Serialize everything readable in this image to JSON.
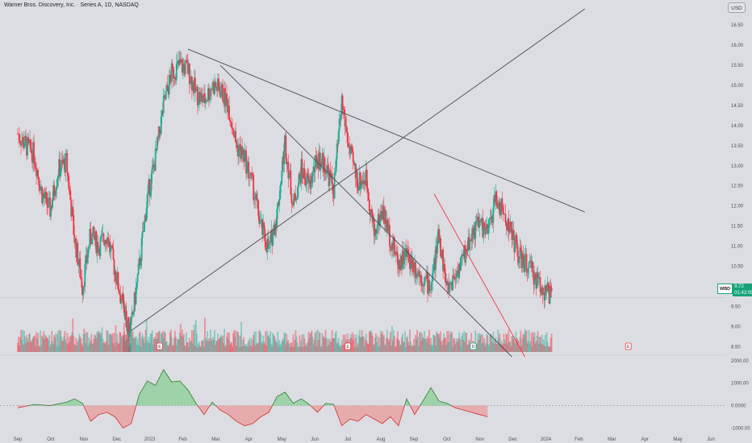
{
  "header": {
    "title": "Warner Bros. Discovery, Inc. · Series A, 1D, NASDAQ",
    "currency_button": "USD"
  },
  "price_tag": {
    "symbol": "WBD",
    "price": "9.72",
    "countdown": "01:42:09"
  },
  "colors": {
    "background": "#dcdde2",
    "up": "#22ab94",
    "down": "#f23645",
    "trendline": "#4a4d55",
    "red_trendline": "#f23645",
    "osc_positive_fill": "#8fcf9a",
    "osc_negative_fill": "#e8a0a0"
  },
  "chart_data": {
    "type": "candlestick",
    "price_axis": {
      "ticks": [
        16.5,
        16.0,
        15.5,
        15.0,
        14.5,
        14.0,
        13.5,
        13.0,
        12.5,
        12.0,
        11.5,
        11.0,
        10.5,
        10.0,
        9.5,
        9.0,
        8.5
      ],
      "tick_labels": [
        "16.50",
        "16.00",
        "15.50",
        "15.00",
        "14.50",
        "14.00",
        "13.50",
        "13.00",
        "12.50",
        "12.00",
        "11.50",
        "11.00",
        "10.50",
        "10.00",
        "9.50",
        "9.00",
        "8.50"
      ],
      "range": [
        8.25,
        17.0
      ]
    },
    "time_axis": {
      "labels": [
        "Sep",
        "Oct",
        "Nov",
        "Dec",
        "2023",
        "Feb",
        "Mar",
        "Apr",
        "May",
        "Jun",
        "Jul",
        "Aug",
        "Sep",
        "Oct",
        "Nov",
        "Dec",
        "2024",
        "Feb",
        "Mar",
        "Apr",
        "May",
        "Jun"
      ],
      "range": [
        0,
        21
      ]
    },
    "price_path": [
      [
        0.0,
        13.8
      ],
      [
        0.5,
        13.5
      ],
      [
        1.0,
        13.3
      ],
      [
        1.5,
        12.3
      ],
      [
        2.0,
        11.9
      ],
      [
        2.5,
        12.9
      ],
      [
        3.0,
        13.1
      ],
      [
        3.5,
        11.2
      ],
      [
        4.0,
        10.0
      ],
      [
        4.5,
        11.3
      ],
      [
        5.0,
        11.0
      ],
      [
        5.5,
        11.3
      ],
      [
        6.0,
        10.4
      ],
      [
        6.5,
        9.5
      ],
      [
        6.8,
        9.0
      ],
      [
        7.0,
        9.0
      ],
      [
        7.5,
        10.5
      ],
      [
        8.0,
        12.2
      ],
      [
        8.5,
        13.2
      ],
      [
        9.0,
        14.5
      ],
      [
        9.5,
        15.3
      ],
      [
        10.0,
        15.5
      ],
      [
        10.5,
        15.4
      ],
      [
        11.0,
        14.8
      ],
      [
        11.5,
        14.6
      ],
      [
        12.0,
        15.0
      ],
      [
        12.5,
        14.9
      ],
      [
        13.0,
        14.5
      ],
      [
        13.5,
        13.5
      ],
      [
        14.0,
        13.2
      ],
      [
        14.5,
        12.5
      ],
      [
        15.0,
        11.5
      ],
      [
        15.5,
        10.9
      ],
      [
        16.0,
        11.8
      ],
      [
        16.5,
        13.6
      ],
      [
        17.0,
        12.0
      ],
      [
        17.5,
        12.9
      ],
      [
        18.0,
        12.5
      ],
      [
        18.5,
        13.2
      ],
      [
        19.0,
        13.0
      ],
      [
        19.5,
        12.4
      ],
      [
        20.0,
        14.6
      ],
      [
        20.5,
        13.3
      ],
      [
        21.0,
        12.6
      ],
      [
        21.5,
        12.7
      ],
      [
        22.0,
        11.3
      ],
      [
        22.5,
        11.9
      ],
      [
        23.0,
        11.2
      ],
      [
        23.5,
        10.6
      ],
      [
        24.0,
        10.8
      ],
      [
        24.5,
        10.5
      ],
      [
        25.0,
        10.2
      ],
      [
        25.5,
        10.0
      ],
      [
        26.0,
        11.3
      ],
      [
        26.5,
        9.9
      ],
      [
        27.0,
        10.3
      ],
      [
        27.5,
        10.7
      ],
      [
        28.0,
        11.3
      ],
      [
        28.5,
        11.6
      ],
      [
        29.0,
        11.3
      ],
      [
        29.5,
        12.2
      ],
      [
        30.0,
        11.8
      ],
      [
        30.5,
        11.3
      ],
      [
        31.0,
        10.7
      ],
      [
        31.5,
        10.5
      ],
      [
        32.0,
        10.2
      ],
      [
        32.5,
        9.9
      ],
      [
        33.0,
        9.72
      ]
    ],
    "trendlines": [
      {
        "from": [
          7.0,
          8.9
        ],
        "to": [
          35.0,
          16.9
        ],
        "color": "#4a4d55"
      },
      {
        "from": [
          10.5,
          15.9
        ],
        "to": [
          35.0,
          11.85
        ],
        "color": "#4a4d55"
      },
      {
        "from": [
          12.5,
          15.5
        ],
        "to": [
          30.5,
          8.25
        ],
        "color": "#4a4d55"
      },
      {
        "from": [
          25.7,
          12.3
        ],
        "to": [
          31.3,
          8.25
        ],
        "color": "#f23645"
      }
    ],
    "volume": {
      "baseline_label": "",
      "max_relative": 1.0
    },
    "event_markers": [
      {
        "x": 4.3,
        "label": "E",
        "kind": "earnings"
      },
      {
        "x": 10.0,
        "label": "E",
        "kind": "earnings"
      },
      {
        "x": 13.8,
        "label": "D",
        "kind": "dividend"
      },
      {
        "x": 18.5,
        "label": "E",
        "kind": "earnings"
      },
      {
        "x": 23.7,
        "label": "E",
        "kind": "earnings"
      },
      {
        "x": 28.8,
        "label": "S",
        "kind": "split"
      },
      {
        "x": 29.3,
        "label": "E",
        "kind": "earnings"
      }
    ],
    "oscillator": {
      "axis_ticks": [
        2000,
        1000,
        0,
        -1000
      ],
      "axis_labels": [
        "2000.00",
        "1000.00",
        "0.0000",
        "-1000.00"
      ],
      "range": [
        -1200,
        2100
      ],
      "values": [
        [
          0.0,
          -100
        ],
        [
          1.0,
          50
        ],
        [
          2.0,
          0
        ],
        [
          3.0,
          150
        ],
        [
          3.5,
          300
        ],
        [
          4.0,
          100
        ],
        [
          4.5,
          -700
        ],
        [
          5.0,
          -400
        ],
        [
          5.5,
          -300
        ],
        [
          6.0,
          -500
        ],
        [
          6.5,
          -1000
        ],
        [
          7.0,
          -800
        ],
        [
          7.5,
          500
        ],
        [
          8.0,
          1100
        ],
        [
          8.5,
          900
        ],
        [
          9.0,
          1600
        ],
        [
          9.5,
          1050
        ],
        [
          10.0,
          1100
        ],
        [
          10.5,
          700
        ],
        [
          11.0,
          100
        ],
        [
          11.5,
          -400
        ],
        [
          12.0,
          150
        ],
        [
          12.5,
          -200
        ],
        [
          13.0,
          -400
        ],
        [
          13.5,
          -700
        ],
        [
          14.0,
          -900
        ],
        [
          14.5,
          -800
        ],
        [
          15.0,
          -500
        ],
        [
          15.5,
          -300
        ],
        [
          16.0,
          400
        ],
        [
          16.5,
          600
        ],
        [
          17.0,
          100
        ],
        [
          17.5,
          300
        ],
        [
          18.0,
          50
        ],
        [
          18.5,
          -300
        ],
        [
          19.0,
          100
        ],
        [
          19.5,
          50
        ],
        [
          20.0,
          -900
        ],
        [
          20.5,
          -600
        ],
        [
          21.0,
          -700
        ],
        [
          21.5,
          -400
        ],
        [
          22.0,
          -600
        ],
        [
          22.5,
          -800
        ],
        [
          23.0,
          -500
        ],
        [
          23.5,
          -900
        ],
        [
          24.0,
          300
        ],
        [
          24.5,
          -400
        ],
        [
          25.0,
          200
        ],
        [
          25.5,
          800
        ],
        [
          26.0,
          200
        ],
        [
          26.5,
          100
        ],
        [
          27.0,
          -100
        ],
        [
          27.5,
          -200
        ],
        [
          28.0,
          -300
        ],
        [
          28.5,
          -400
        ],
        [
          29.0,
          -500
        ]
      ]
    }
  }
}
